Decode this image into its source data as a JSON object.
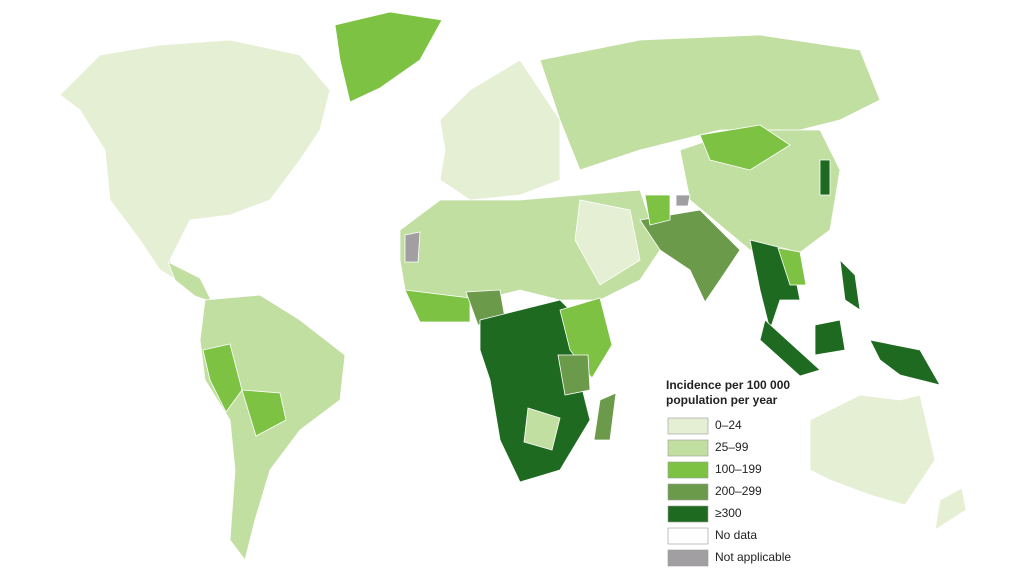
{
  "legend": {
    "title_lines": [
      "Incidence per 100 000",
      "population per year"
    ],
    "items": [
      {
        "label": "0–24",
        "color": "#e4efd4"
      },
      {
        "label": "25–99",
        "color": "#c2dfa2"
      },
      {
        "label": "100–199",
        "color": "#7dc243"
      },
      {
        "label": "200–299",
        "color": "#6b9a4a"
      },
      {
        "label": "≥300",
        "color": "#1f6a21"
      },
      {
        "label": "No data",
        "color": "#ffffff"
      },
      {
        "label": "Not applicable",
        "color": "#a29fa3"
      }
    ]
  }
}
